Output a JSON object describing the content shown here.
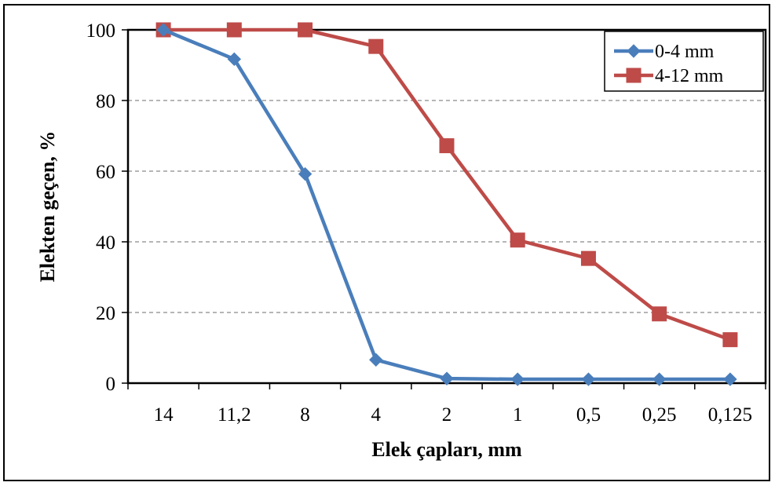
{
  "chart_data": {
    "type": "line",
    "categories": [
      "14",
      "11,2",
      "8",
      "4",
      "2",
      "1",
      "0,5",
      "0,25",
      "0,125"
    ],
    "series": [
      {
        "name": "0-4 mm",
        "color": "#4a7ebb",
        "marker": "diamond",
        "values": [
          100,
          91.7,
          59.2,
          6.6,
          1.3,
          1.1,
          1.1,
          1.1,
          1.1
        ]
      },
      {
        "name": "4-12 mm",
        "color": "#be4b48",
        "marker": "square",
        "values": [
          100,
          100,
          100,
          95.3,
          67.2,
          40.5,
          35.3,
          19.6,
          12.3
        ]
      }
    ],
    "xlabel": "Elek çapları, mm",
    "ylabel": "Elekten geçen, %",
    "ylim": [
      0,
      100
    ],
    "yticks": [
      0,
      20,
      40,
      60,
      80,
      100
    ],
    "grid": "horizontal-dashed",
    "legend_position": "top-right"
  }
}
